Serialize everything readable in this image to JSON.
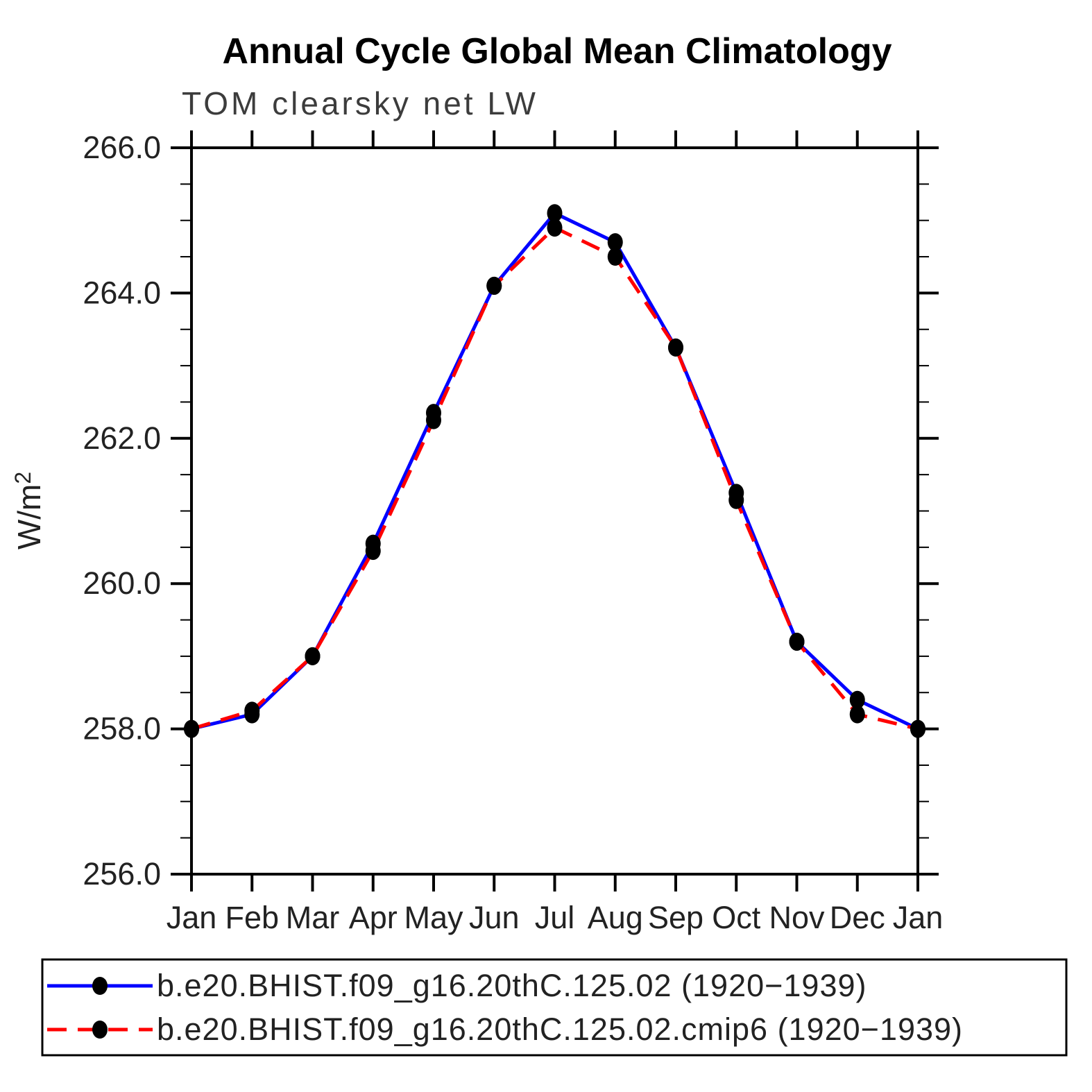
{
  "header": {
    "title": "Annual Cycle Global Mean Climatology",
    "subtitle": "TOM clearsky net LW"
  },
  "axis": {
    "ylabel_base": "W/m",
    "ylabel_exp": "2"
  },
  "chart_data": {
    "type": "line",
    "title": "Annual Cycle Global Mean Climatology",
    "subtitle": "TOM clearsky net LW",
    "ylabel": "W/m²",
    "xlabel": "",
    "categories": [
      "Jan",
      "Feb",
      "Mar",
      "Apr",
      "May",
      "Jun",
      "Jul",
      "Aug",
      "Sep",
      "Oct",
      "Nov",
      "Dec",
      "Jan"
    ],
    "ylim": [
      256.0,
      266.0
    ],
    "yticks": [
      256.0,
      258.0,
      260.0,
      262.0,
      264.0,
      266.0
    ],
    "ytick_major_step": 2.0,
    "ytick_minor_step": 0.5,
    "ytick_label_format": "one-decimal",
    "grid": false,
    "legend_position": "bottom-left-box",
    "marker": "filled-dot",
    "marker_color": "#000000",
    "series": [
      {
        "label": "b.e20.BHIST.f09_g16.20thC.125.02 (1920−1939)",
        "color": "#0000ff",
        "style": "solid",
        "values": [
          258.0,
          258.2,
          259.0,
          260.55,
          262.35,
          264.1,
          265.1,
          264.7,
          263.25,
          261.25,
          259.2,
          258.4,
          258.0
        ]
      },
      {
        "label": "b.e20.BHIST.f09_g16.20thC.125.02.cmip6 (1920−1939)",
        "color": "#ff0000",
        "style": "dashed",
        "values": [
          258.0,
          258.25,
          259.0,
          260.45,
          262.25,
          264.1,
          264.9,
          264.5,
          263.25,
          261.15,
          259.2,
          258.2,
          258.0
        ]
      }
    ]
  }
}
